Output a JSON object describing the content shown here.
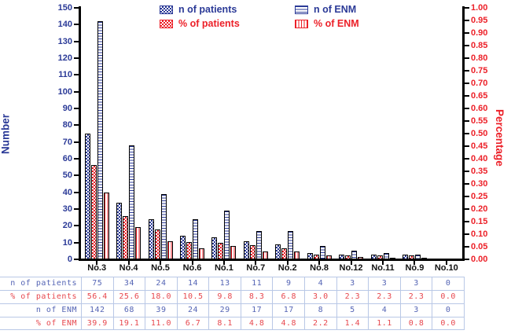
{
  "chart_data": {
    "type": "bar",
    "title": "",
    "categories": [
      "No.3",
      "No.4",
      "No.5",
      "No.6",
      "No.1",
      "No.7",
      "No.2",
      "No.8",
      "No.12",
      "No.11",
      "No.9",
      "No.10"
    ],
    "series": [
      {
        "name": "n of patients",
        "axis": "left",
        "color": "#2b3a97",
        "pattern": "checker-blue",
        "values": [
          75,
          34,
          24,
          14,
          13,
          11,
          9,
          4,
          3,
          3,
          3,
          0
        ]
      },
      {
        "name": "% of patients",
        "axis": "right",
        "color": "#ec2028",
        "pattern": "checker-red",
        "values": [
          56.4,
          25.6,
          18.0,
          10.5,
          9.8,
          8.3,
          6.8,
          3.0,
          2.3,
          2.3,
          2.3,
          0.0
        ]
      },
      {
        "name": "n of ENM",
        "axis": "left",
        "color": "#2b3a97",
        "pattern": "hlines-blue",
        "values": [
          142,
          68,
          39,
          24,
          29,
          17,
          17,
          8,
          5,
          4,
          3,
          0
        ]
      },
      {
        "name": "% of ENM",
        "axis": "right",
        "color": "#ec2028",
        "pattern": "vlines-red",
        "values": [
          39.9,
          19.1,
          11.0,
          6.7,
          8.1,
          4.8,
          4.8,
          2.2,
          1.4,
          1.1,
          0.8,
          0.0
        ]
      }
    ],
    "left_axis": {
      "label": "Number",
      "min": 0,
      "max": 150,
      "tick_step": 10,
      "tick_labels": [
        "0",
        "10",
        "20",
        "30",
        "40",
        "50",
        "60",
        "70",
        "80",
        "90",
        "100",
        "110",
        "120",
        "130",
        "140",
        "150"
      ],
      "color": "#2b3a97"
    },
    "right_axis": {
      "label": "Percentage",
      "min": 0,
      "max": 1.0,
      "tick_step": 0.05,
      "tick_labels": [
        "0.00",
        "0.05",
        "0.10",
        "0.15",
        "0.20",
        "0.25",
        "0.30",
        "0.35",
        "0.40",
        "0.45",
        "0.50",
        "0.55",
        "0.60",
        "0.65",
        "0.70",
        "0.75",
        "0.80",
        "0.85",
        "0.90",
        "0.95",
        "1.00"
      ],
      "color": "#ec2028"
    },
    "legend_position": "top",
    "grid": false
  },
  "table": {
    "rows": [
      {
        "label": "n of patients",
        "color": "blue",
        "values": [
          "75",
          "34",
          "24",
          "14",
          "13",
          "11",
          "9",
          "4",
          "3",
          "3",
          "3",
          "0"
        ]
      },
      {
        "label": "% of patients",
        "color": "red",
        "values": [
          "56.4",
          "25.6",
          "18.0",
          "10.5",
          "9.8",
          "8.3",
          "6.8",
          "3.0",
          "2.3",
          "2.3",
          "2.3",
          "0.0"
        ]
      },
      {
        "label": "n of ENM",
        "color": "blue",
        "values": [
          "142",
          "68",
          "39",
          "24",
          "29",
          "17",
          "17",
          "8",
          "5",
          "4",
          "3",
          "0"
        ]
      },
      {
        "label": "% of ENM",
        "color": "red",
        "values": [
          "39.9",
          "19.1",
          "11.0",
          "6.7",
          "8.1",
          "4.8",
          "4.8",
          "2.2",
          "1.4",
          "1.1",
          "0.8",
          "0.0"
        ]
      }
    ]
  }
}
